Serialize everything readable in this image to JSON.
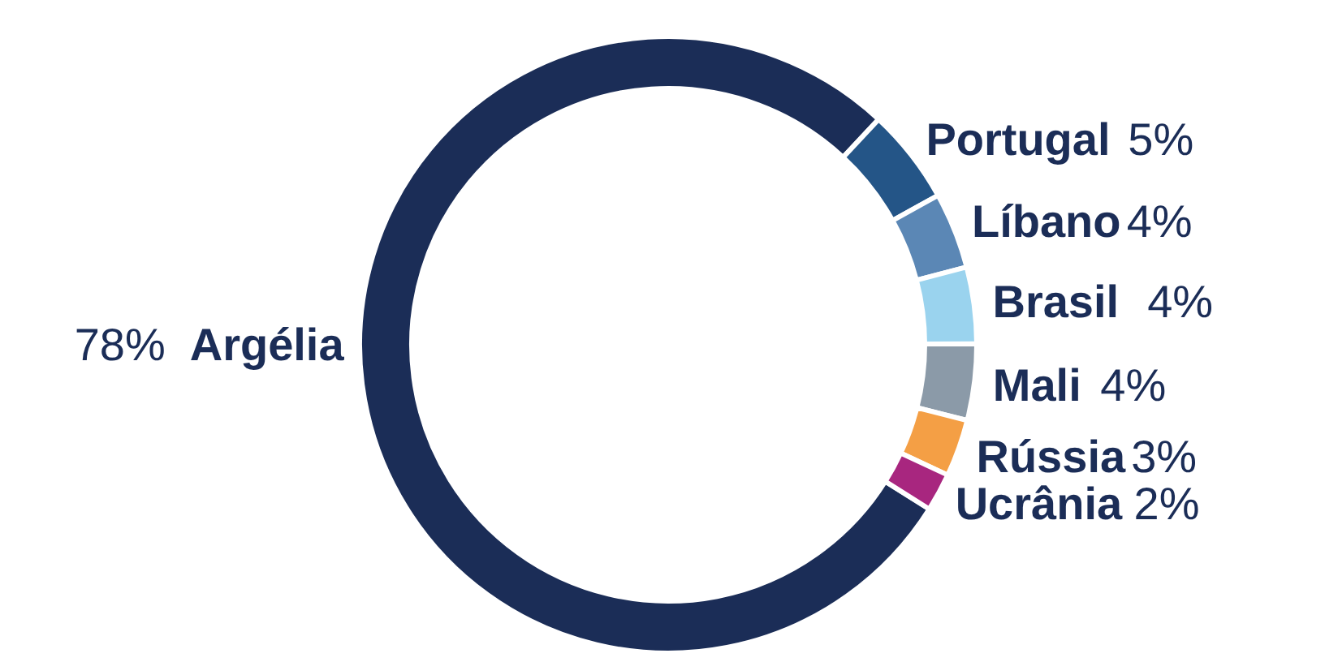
{
  "chart_data": {
    "type": "donut",
    "categories": [
      "Argélia",
      "Portugal",
      "Líbano",
      "Brasil",
      "Mali",
      "Rússia",
      "Ucrânia"
    ],
    "values": [
      78,
      5,
      4,
      4,
      4,
      3,
      2
    ],
    "colors": [
      "#1b2d57",
      "#245587",
      "#5b87b5",
      "#9ad3ee",
      "#8b9aa8",
      "#f49f45",
      "#a8267f"
    ],
    "value_labels": [
      "78%",
      "5%",
      "4%",
      "4%",
      "4%",
      "3%",
      "2%"
    ]
  }
}
